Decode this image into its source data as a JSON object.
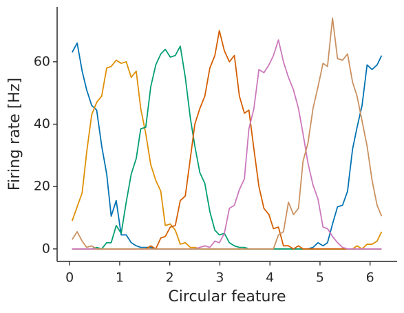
{
  "chart_data": {
    "type": "line",
    "xlabel": "Circular feature",
    "ylabel": "Firing rate [Hz]",
    "xlim": [
      -0.25,
      6.54
    ],
    "ylim": [
      -4,
      77.6
    ],
    "xticks": [
      0,
      1,
      2,
      3,
      4,
      5,
      6
    ],
    "yticks": [
      0,
      20,
      40,
      60
    ],
    "grid": false,
    "x": [
      0.05,
      0.15,
      0.25,
      0.34,
      0.44,
      0.54,
      0.64,
      0.74,
      0.83,
      0.93,
      1.03,
      1.13,
      1.23,
      1.33,
      1.42,
      1.52,
      1.62,
      1.72,
      1.82,
      1.91,
      2.01,
      2.11,
      2.21,
      2.31,
      2.41,
      2.5,
      2.6,
      2.7,
      2.8,
      2.9,
      2.99,
      3.09,
      3.19,
      3.29,
      3.39,
      3.49,
      3.58,
      3.68,
      3.78,
      3.88,
      3.98,
      4.07,
      4.17,
      4.27,
      4.37,
      4.47,
      4.57,
      4.66,
      4.76,
      4.86,
      4.96,
      5.06,
      5.15,
      5.25,
      5.35,
      5.45,
      5.55,
      5.65,
      5.74,
      5.84,
      5.94,
      6.04,
      6.14,
      6.23
    ],
    "series": [
      {
        "color": "#0173b2",
        "values": [
          63,
          66,
          57,
          51,
          46,
          44.5,
          33,
          24,
          10.5,
          15.5,
          4.5,
          4.5,
          2,
          1,
          0.5,
          0.5,
          0.5,
          0,
          0,
          0,
          0,
          0,
          0,
          0,
          0,
          0,
          0,
          0,
          0,
          0,
          0,
          0,
          0,
          0,
          0,
          0,
          0,
          0,
          0,
          0,
          0,
          0,
          0,
          0,
          0,
          0,
          0,
          0,
          0,
          0.5,
          2,
          1,
          2,
          8,
          13.5,
          14,
          18.5,
          32,
          39,
          46,
          59,
          57.5,
          59,
          62
        ]
      },
      {
        "color": "#de8f05",
        "values": [
          9,
          13.5,
          18,
          31,
          43,
          47,
          49,
          58,
          58.5,
          60.5,
          59.5,
          60,
          55,
          57,
          45,
          37,
          27,
          22,
          18.5,
          7.5,
          8,
          6,
          1.5,
          2,
          0.5,
          0.5,
          0,
          0,
          0,
          0,
          0,
          0,
          0,
          0,
          0,
          0,
          0,
          0,
          0,
          0,
          0,
          0,
          0,
          0,
          0,
          0,
          0,
          0,
          0,
          0,
          0,
          0,
          0,
          0,
          0,
          0,
          0,
          0,
          1,
          0,
          1.5,
          1.5,
          2.5,
          5.5
        ]
      },
      {
        "color": "#029e73",
        "values": [
          0,
          0,
          0,
          0,
          0,
          0.5,
          0,
          2,
          2,
          7.5,
          5,
          15,
          24,
          29,
          38.5,
          39,
          52,
          59,
          62.5,
          64,
          61.5,
          62,
          65,
          55,
          42,
          33,
          24.5,
          21,
          12,
          6,
          4.5,
          5,
          2,
          1,
          0.5,
          0.5,
          0,
          0,
          0,
          0,
          0,
          0,
          0,
          0,
          0,
          0,
          0,
          0,
          0,
          0,
          0,
          0,
          0,
          0,
          0,
          0,
          0,
          0,
          0,
          0,
          0,
          0,
          0,
          0
        ]
      },
      {
        "color": "#d55e00",
        "values": [
          0,
          0,
          0,
          0,
          0,
          0,
          0,
          0,
          0,
          0,
          0,
          0,
          0,
          0,
          0,
          0,
          1,
          0,
          3.5,
          4,
          7,
          7.5,
          15.5,
          17,
          29,
          40,
          45,
          49,
          58,
          62,
          70,
          63.5,
          60,
          62,
          49,
          43.5,
          44.5,
          32,
          20,
          13,
          11,
          6.5,
          7,
          1,
          1,
          0,
          1,
          0,
          0,
          0,
          0,
          0,
          0,
          0,
          0,
          0,
          0,
          0,
          0,
          0,
          0,
          0,
          0,
          0
        ]
      },
      {
        "color": "#cc78bc",
        "values": [
          0,
          0,
          0,
          0,
          0,
          0,
          0,
          0,
          0,
          0,
          0,
          0,
          0,
          0,
          0,
          0,
          0,
          0,
          0,
          0,
          0,
          0,
          0,
          0,
          0,
          0,
          0.5,
          1,
          0.5,
          2.5,
          2,
          5,
          13,
          14,
          19,
          22.5,
          38.5,
          45,
          57.5,
          56.5,
          59,
          62,
          67,
          60,
          55,
          51,
          45,
          37,
          27.5,
          20.5,
          16,
          7,
          6.5,
          4,
          2,
          0.5,
          0,
          0,
          0,
          0,
          0,
          0,
          0,
          0
        ]
      },
      {
        "color": "#ca9161",
        "values": [
          3,
          5.5,
          2.5,
          0.5,
          1,
          0,
          0,
          0,
          0,
          0,
          0,
          0,
          0,
          0,
          0,
          0,
          0,
          0,
          0,
          0,
          0,
          0,
          0,
          0,
          0,
          0,
          0,
          0,
          0,
          0,
          0,
          0,
          0,
          0,
          0,
          0,
          0,
          0,
          0,
          0,
          0,
          0,
          4.5,
          5.5,
          15,
          11,
          13,
          28,
          34,
          45,
          52,
          59.5,
          58.5,
          74,
          61,
          60.5,
          62.5,
          53.5,
          49,
          41,
          33,
          22,
          14,
          10.5
        ]
      }
    ]
  }
}
